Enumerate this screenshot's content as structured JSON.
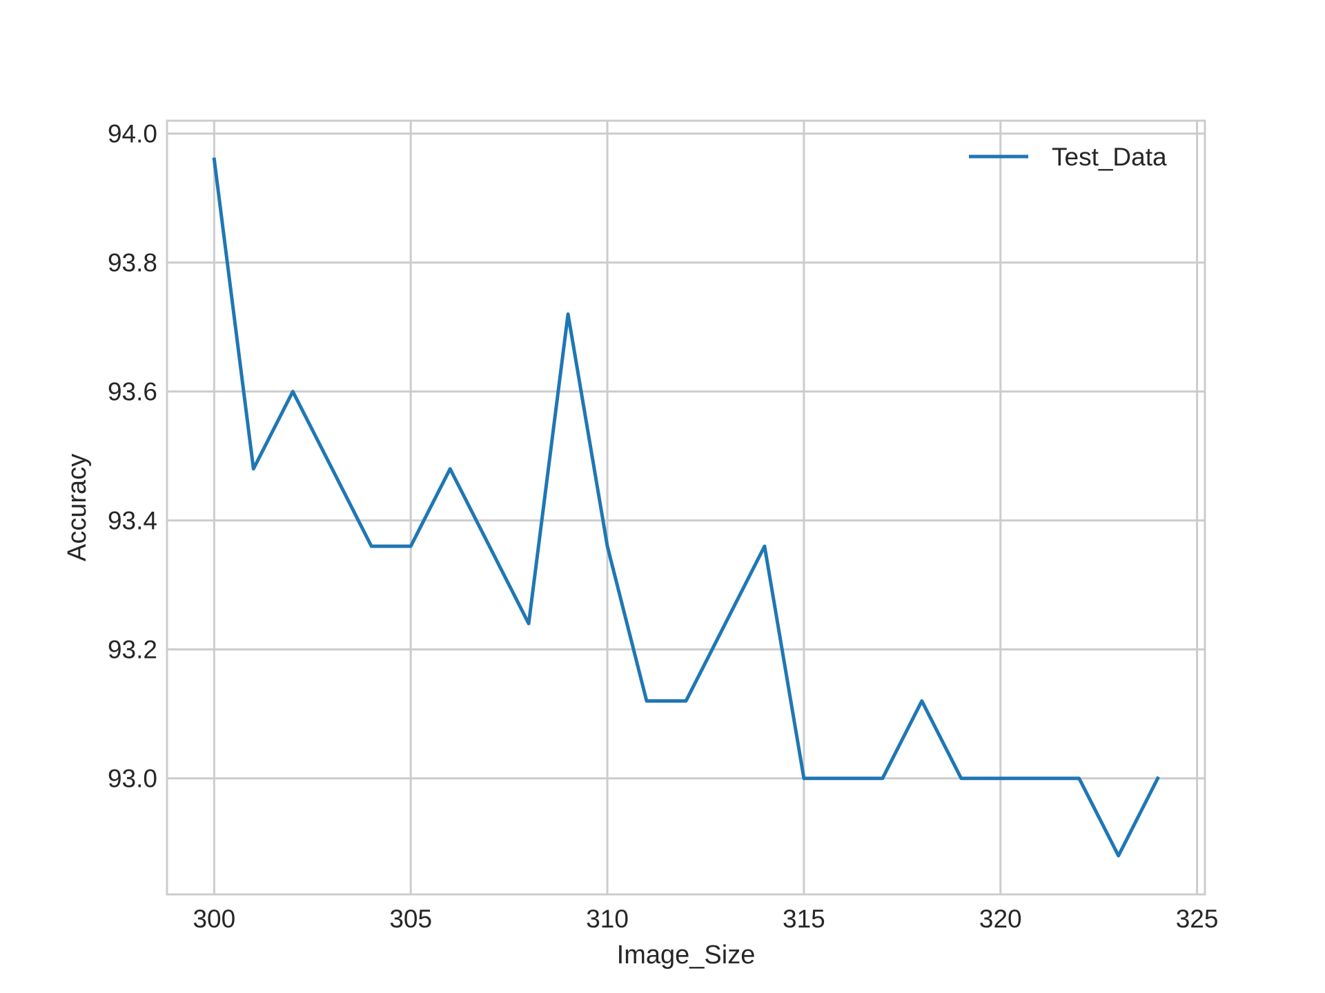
{
  "chart_data": {
    "type": "line",
    "title": "",
    "xlabel": "Image_Size",
    "ylabel": "Accuracy",
    "xlim": [
      298.8,
      325.2
    ],
    "ylim": [
      92.82,
      94.02
    ],
    "xticks": [
      300,
      305,
      310,
      315,
      320,
      325
    ],
    "xtick_labels": [
      "300",
      "305",
      "310",
      "315",
      "320",
      "325"
    ],
    "yticks": [
      93.0,
      93.2,
      93.4,
      93.6,
      93.8,
      94.0
    ],
    "ytick_labels": [
      "93.0",
      "93.2",
      "93.4",
      "93.6",
      "93.8",
      "94.0"
    ],
    "grid": true,
    "legend_position": "top-right",
    "x": [
      300,
      301,
      302,
      303,
      304,
      305,
      306,
      307,
      308,
      309,
      310,
      311,
      312,
      313,
      314,
      315,
      316,
      317,
      318,
      319,
      320,
      321,
      322,
      323,
      324
    ],
    "series": [
      {
        "name": "Test_Data",
        "color": "#1f77b4",
        "values": [
          93.96,
          93.48,
          93.6,
          93.48,
          93.36,
          93.36,
          93.48,
          93.36,
          93.24,
          93.72,
          93.36,
          93.12,
          93.12,
          93.24,
          93.36,
          93.0,
          93.0,
          93.0,
          93.12,
          93.0,
          93.0,
          93.0,
          93.0,
          92.88,
          93.0
        ]
      }
    ]
  },
  "colors": {
    "grid": "#cccccc",
    "frame": "#cccccc",
    "text": "#262626"
  }
}
